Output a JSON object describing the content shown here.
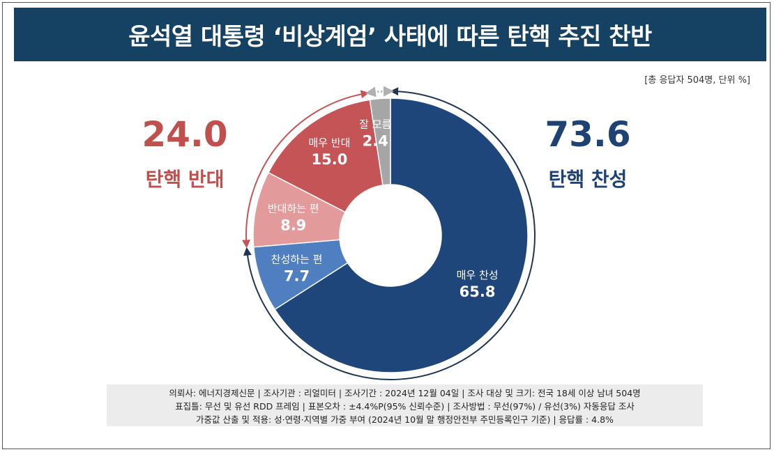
{
  "title": "윤석열 대통령 ‘비상계엄’ 사태에 따른 탄핵 추진 찬반",
  "note": "[총 응답자 504명, 단위 %]",
  "summary": {
    "oppose": {
      "value": "24.0",
      "label": "탄핵 반대"
    },
    "support": {
      "value": "73.6",
      "label": "탄핵 찬성"
    }
  },
  "colors": {
    "title_bg": "#154162",
    "strong_support": "#1f467b",
    "weak_support": "#4f7fc1",
    "weak_oppose": "#e39a9a",
    "strong_oppose": "#c45456",
    "unknown": "#a6a6a6",
    "oppose_text": "#c0504d",
    "support_text": "#1f4275"
  },
  "chart_data": {
    "type": "pie",
    "donut": true,
    "start": "12 o'clock",
    "direction": "clockwise",
    "slices": [
      {
        "label": "매우 찬성",
        "value": 65.8,
        "display": "65.8",
        "color_key": "strong_support"
      },
      {
        "label": "찬성하는 편",
        "value": 7.7,
        "display": "7.7",
        "color_key": "weak_support"
      },
      {
        "label": "반대하는 편",
        "value": 8.9,
        "display": "8.9",
        "color_key": "weak_oppose"
      },
      {
        "label": "매우 반대",
        "value": 15.0,
        "display": "15.0",
        "color_key": "strong_oppose"
      },
      {
        "label": "잘 모름",
        "value": 2.4,
        "display": "2.4",
        "color_key": "unknown"
      }
    ]
  },
  "footer": {
    "line1": "의뢰사: 에너지경제신문 | 조사기관 : 리얼미터 | 조사기간 : 2024년 12월 04일 | 조사 대상 및 크기: 전국 18세 이상 남녀 504명",
    "line2": "표집틀: 무선 및 유선 RDD 프레임 | 표본오차 : ±4.4%P(95% 신뢰수준) | 조사방법 : 무선(97%) / 유선(3%) 자동응답 조사",
    "line3": "가중값 산출 및 적용: 성·연령·지역별 가중 부여 (2024년 10월 말 행정안전부 주민등록인구 기준) | 응답률 : 4.8%"
  }
}
